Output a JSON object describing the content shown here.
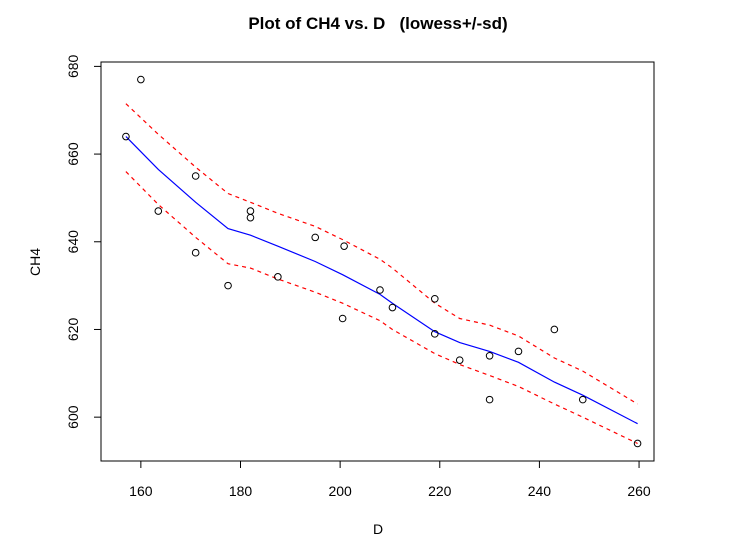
{
  "chart_data": {
    "type": "scatter",
    "title": "Plot of CH4 vs. D   (lowess+/-sd)",
    "xlabel": "D",
    "ylabel": "CH4",
    "xlim": [
      152,
      263
    ],
    "ylim": [
      590,
      681
    ],
    "x_ticks": [
      160,
      180,
      200,
      220,
      240,
      260
    ],
    "y_ticks": [
      600,
      620,
      640,
      660,
      680
    ],
    "grid": false,
    "colors": {
      "points": "#000000",
      "lowess": "#0000ff",
      "sd_band": "#ff0000"
    },
    "points": [
      {
        "x": 157,
        "y": 664
      },
      {
        "x": 160,
        "y": 677
      },
      {
        "x": 163.5,
        "y": 647
      },
      {
        "x": 171,
        "y": 655
      },
      {
        "x": 171,
        "y": 637.5
      },
      {
        "x": 177.5,
        "y": 630
      },
      {
        "x": 182,
        "y": 647
      },
      {
        "x": 182,
        "y": 645.5
      },
      {
        "x": 187.5,
        "y": 632
      },
      {
        "x": 195,
        "y": 641
      },
      {
        "x": 200.5,
        "y": 622.5
      },
      {
        "x": 200.8,
        "y": 639
      },
      {
        "x": 208,
        "y": 629
      },
      {
        "x": 210.5,
        "y": 625
      },
      {
        "x": 219,
        "y": 627
      },
      {
        "x": 219,
        "y": 619
      },
      {
        "x": 224,
        "y": 613
      },
      {
        "x": 230,
        "y": 614
      },
      {
        "x": 230,
        "y": 604
      },
      {
        "x": 235.8,
        "y": 615
      },
      {
        "x": 243,
        "y": 620
      },
      {
        "x": 248.7,
        "y": 604
      },
      {
        "x": 259.7,
        "y": 594
      }
    ],
    "series": [
      {
        "style": "solid",
        "points": [
          [
            157,
            664
          ],
          [
            163.5,
            656.5
          ],
          [
            171,
            649
          ],
          [
            177.5,
            643
          ],
          [
            182,
            641.5
          ],
          [
            187.5,
            639
          ],
          [
            195,
            635.5
          ],
          [
            200.5,
            632.5
          ],
          [
            208,
            628
          ],
          [
            210.5,
            626
          ],
          [
            219,
            619.5
          ],
          [
            224,
            617
          ],
          [
            230,
            615
          ],
          [
            235.8,
            612.5
          ],
          [
            243,
            608
          ],
          [
            248.7,
            605
          ],
          [
            259.7,
            598.5
          ]
        ]
      },
      {
        "style": "dashed",
        "points": [
          [
            157,
            671.5
          ],
          [
            163.5,
            664.5
          ],
          [
            171,
            657
          ],
          [
            177.5,
            651
          ],
          [
            182,
            649
          ],
          [
            187.5,
            646.5
          ],
          [
            195,
            643.5
          ],
          [
            200.5,
            640.5
          ],
          [
            208,
            636
          ],
          [
            210.5,
            634
          ],
          [
            219,
            626
          ],
          [
            224,
            622.5
          ],
          [
            230,
            621
          ],
          [
            235.8,
            618.5
          ],
          [
            243,
            613.5
          ],
          [
            248.7,
            610.5
          ],
          [
            259.7,
            603
          ]
        ]
      },
      {
        "style": "dashed",
        "points": [
          [
            157,
            656
          ],
          [
            163.5,
            648.5
          ],
          [
            171,
            641
          ],
          [
            177.5,
            635
          ],
          [
            182,
            634
          ],
          [
            187.5,
            631.5
          ],
          [
            195,
            628.5
          ],
          [
            200.5,
            626
          ],
          [
            208,
            622
          ],
          [
            210.5,
            620
          ],
          [
            219,
            614.5
          ],
          [
            224,
            612
          ],
          [
            230,
            609.5
          ],
          [
            235.8,
            607
          ],
          [
            243,
            603
          ],
          [
            248.7,
            600
          ],
          [
            259.7,
            594
          ]
        ]
      }
    ]
  }
}
